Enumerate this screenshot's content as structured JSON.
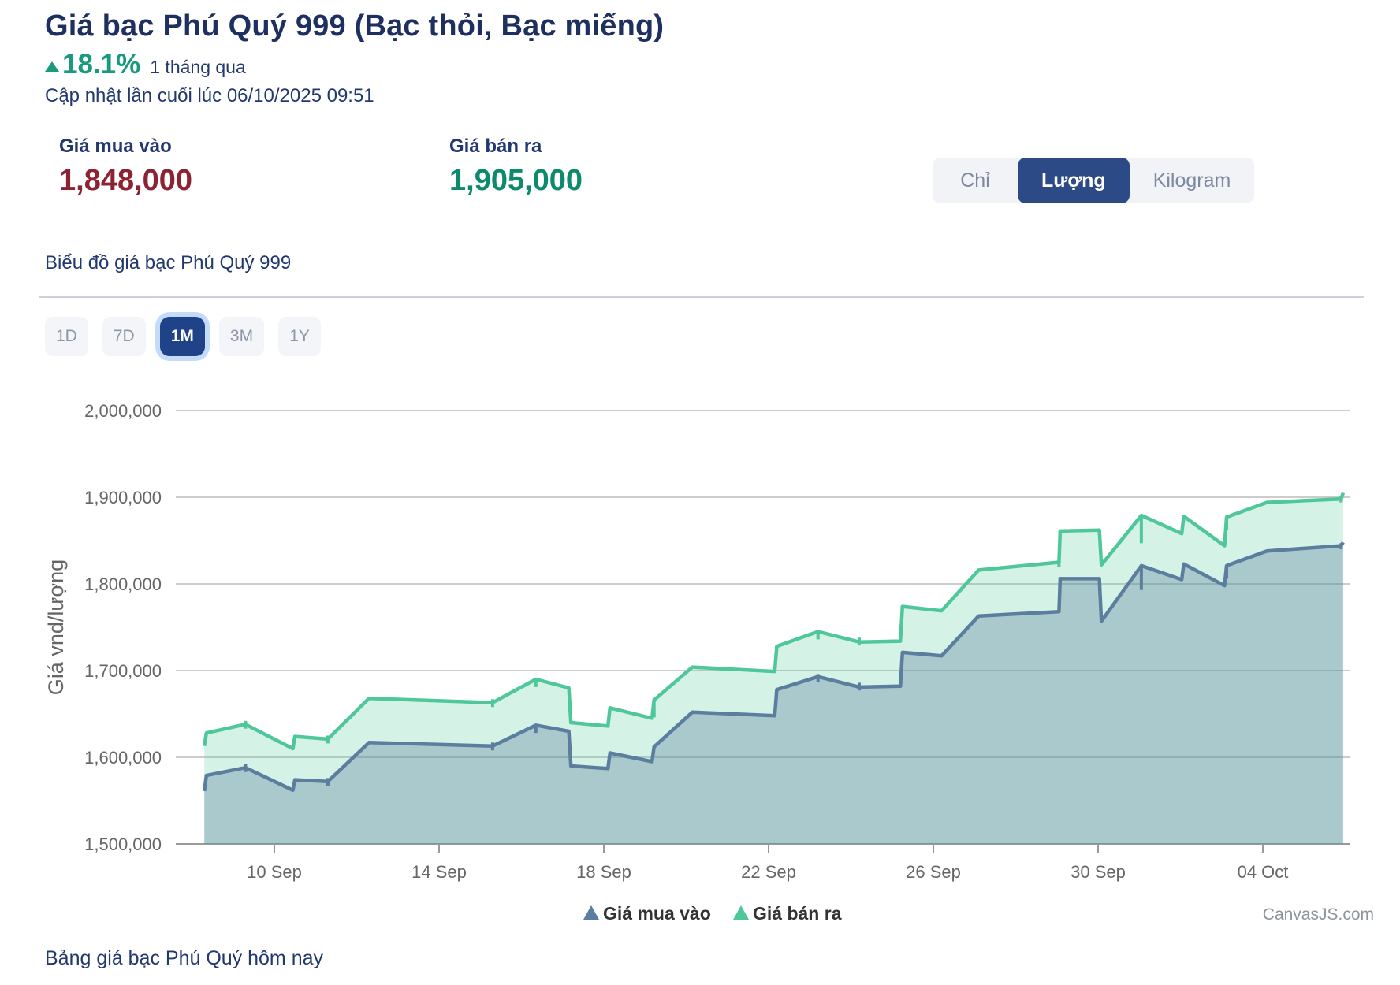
{
  "header": {
    "title": "Giá bạc Phú Quý 999 (Bạc thỏi, Bạc miếng)",
    "change_percent": "18.1%",
    "change_direction": "up",
    "change_period": "1 tháng qua",
    "updated": "Cập nhật lần cuối lúc 06/10/2025 09:51"
  },
  "prices": {
    "buy_label": "Giá mua vào",
    "buy_value": "1,848,000",
    "sell_label": "Giá bán ra",
    "sell_value": "1,905,000",
    "buy_color": "#8b2332",
    "sell_color": "#0d8a6c"
  },
  "unit_toggle": {
    "options": [
      {
        "label": "Chỉ",
        "selected": false
      },
      {
        "label": "Lượng",
        "selected": true
      },
      {
        "label": "Kilogram",
        "selected": false
      }
    ],
    "selected": "Lượng",
    "selected_bg": "#2b4a86"
  },
  "chart_section": {
    "title": "Biểu đồ giá bạc Phú Quý 999"
  },
  "ranges": {
    "options": [
      "1D",
      "7D",
      "1M",
      "3M",
      "1Y"
    ],
    "selected": "1M"
  },
  "footer": {
    "link": "Bảng giá bạc Phú Quý hôm nay"
  },
  "chart_data": {
    "type": "area",
    "subtype": "step-area, two series, CanvasJS style",
    "ylabel": "Giá vnd/lượng",
    "watermark": "CanvasJS.com",
    "y_ticks": [
      1500000,
      1600000,
      1700000,
      1800000,
      1900000,
      2000000
    ],
    "ylim": [
      1500000,
      2000000
    ],
    "x_unit": "days since 08 Sep 2025",
    "x_ticks": [
      {
        "t": 2,
        "label": "10 Sep"
      },
      {
        "t": 6,
        "label": "14 Sep"
      },
      {
        "t": 10,
        "label": "18 Sep"
      },
      {
        "t": 14,
        "label": "22 Sep"
      },
      {
        "t": 18,
        "label": "26 Sep"
      },
      {
        "t": 22,
        "label": "30 Sep"
      },
      {
        "t": 26,
        "label": "04 Oct"
      }
    ],
    "grid": true,
    "legend_position": "bottom",
    "series": [
      {
        "id": "buy",
        "name": "Giá mua vào",
        "color": "#5b7e9e",
        "fill": "rgba(91,126,158,0.35)",
        "points": [
          [
            0.3,
            1561000
          ],
          [
            0.35,
            1579000
          ],
          [
            1.3,
            1588000
          ],
          [
            2.45,
            1562000
          ],
          [
            2.5,
            1574000
          ],
          [
            3.3,
            1572000
          ],
          [
            4.3,
            1617000
          ],
          [
            7.3,
            1613000
          ],
          [
            8.35,
            1637000
          ],
          [
            9.15,
            1630000
          ],
          [
            9.2,
            1590000
          ],
          [
            10.1,
            1587000
          ],
          [
            10.15,
            1605000
          ],
          [
            11.17,
            1595000
          ],
          [
            11.22,
            1612000
          ],
          [
            12.15,
            1652000
          ],
          [
            14.15,
            1648000
          ],
          [
            14.2,
            1678000
          ],
          [
            15.2,
            1693000
          ],
          [
            16.2,
            1681000
          ],
          [
            17.2,
            1682000
          ],
          [
            17.25,
            1721000
          ],
          [
            18.2,
            1717000
          ],
          [
            19.1,
            1763000
          ],
          [
            21.05,
            1768000
          ],
          [
            21.08,
            1806000
          ],
          [
            22.03,
            1806000
          ],
          [
            22.08,
            1757000
          ],
          [
            23.05,
            1821000
          ],
          [
            24.03,
            1805000
          ],
          [
            24.08,
            1823000
          ],
          [
            25.07,
            1798000
          ],
          [
            25.12,
            1821000
          ],
          [
            26.1,
            1838000
          ],
          [
            27.9,
            1844000
          ],
          [
            27.95,
            1848000
          ]
        ],
        "marker_ticks": [
          [
            1.3,
            1592000,
            1583000
          ],
          [
            3.3,
            1576000,
            1567000
          ],
          [
            7.3,
            1617000,
            1608000
          ],
          [
            8.35,
            1637000,
            1628000
          ],
          [
            15.2,
            1696000,
            1687000
          ],
          [
            16.2,
            1686000,
            1677000
          ],
          [
            23.05,
            1821000,
            1793000
          ],
          [
            25.12,
            1821000,
            1806000
          ],
          [
            27.9,
            1847000,
            1840000
          ]
        ]
      },
      {
        "id": "sell",
        "name": "Giá bán ra",
        "color": "#4ec79b",
        "fill": "rgba(78,199,155,0.24)",
        "points": [
          [
            0.3,
            1613000
          ],
          [
            0.35,
            1628000
          ],
          [
            1.3,
            1638000
          ],
          [
            2.45,
            1610000
          ],
          [
            2.5,
            1624000
          ],
          [
            3.3,
            1621000
          ],
          [
            4.3,
            1668000
          ],
          [
            7.3,
            1663000
          ],
          [
            8.35,
            1690000
          ],
          [
            9.15,
            1680000
          ],
          [
            9.2,
            1640000
          ],
          [
            10.1,
            1636000
          ],
          [
            10.15,
            1657000
          ],
          [
            11.17,
            1645000
          ],
          [
            11.22,
            1666000
          ],
          [
            12.15,
            1704000
          ],
          [
            14.15,
            1699000
          ],
          [
            14.2,
            1728000
          ],
          [
            15.2,
            1745000
          ],
          [
            16.2,
            1733000
          ],
          [
            17.2,
            1734000
          ],
          [
            17.25,
            1774000
          ],
          [
            18.2,
            1769000
          ],
          [
            19.1,
            1816000
          ],
          [
            21.05,
            1825000
          ],
          [
            21.08,
            1861000
          ],
          [
            22.03,
            1862000
          ],
          [
            22.08,
            1822000
          ],
          [
            23.05,
            1879000
          ],
          [
            24.03,
            1858000
          ],
          [
            24.08,
            1878000
          ],
          [
            25.07,
            1844000
          ],
          [
            25.12,
            1877000
          ],
          [
            26.1,
            1894000
          ],
          [
            27.9,
            1898000
          ],
          [
            27.95,
            1905000
          ]
        ],
        "marker_ticks": [
          [
            1.3,
            1642000,
            1633000
          ],
          [
            3.3,
            1625000,
            1616000
          ],
          [
            7.3,
            1667000,
            1658000
          ],
          [
            8.35,
            1690000,
            1681000
          ],
          [
            11.22,
            1666000,
            1646000
          ],
          [
            15.2,
            1745000,
            1736000
          ],
          [
            16.2,
            1738000,
            1729000
          ],
          [
            21.05,
            1830000,
            1820000
          ],
          [
            23.05,
            1879000,
            1847000
          ],
          [
            25.12,
            1877000,
            1862000
          ],
          [
            27.9,
            1901000,
            1894000
          ]
        ]
      }
    ],
    "axis_colors": {
      "grid": "#bcbcbc",
      "axis_line": "#9a9a9a",
      "labels": "#666666",
      "legend_text": "#333333",
      "watermark": "#8e949c"
    }
  }
}
